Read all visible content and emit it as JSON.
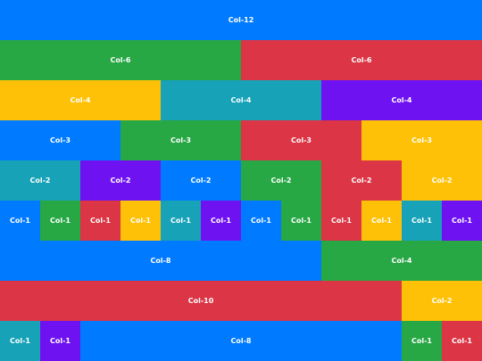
{
  "grid": {
    "row1": {
      "col12": "Col-12"
    },
    "row2": {
      "col6": "Col-6"
    },
    "row3": {
      "col4": "Col-4"
    },
    "row4": {
      "col3": "Col-3"
    },
    "row5": {
      "col2": "Col-2"
    },
    "row6": {
      "col1": "Col-1"
    },
    "row7": {
      "col8": "Col-8",
      "col4": "Col-4"
    },
    "row8": {
      "col10": "Col-10",
      "col2": "Col-2"
    },
    "row9": {
      "col1": "Col-1",
      "col8": "Col-8"
    }
  },
  "palette": {
    "blue": "#007bff",
    "green": "#28a745",
    "red": "#dc3545",
    "yellow": "#ffc107",
    "teal": "#17a2b8",
    "purple": "#6f12f2"
  }
}
